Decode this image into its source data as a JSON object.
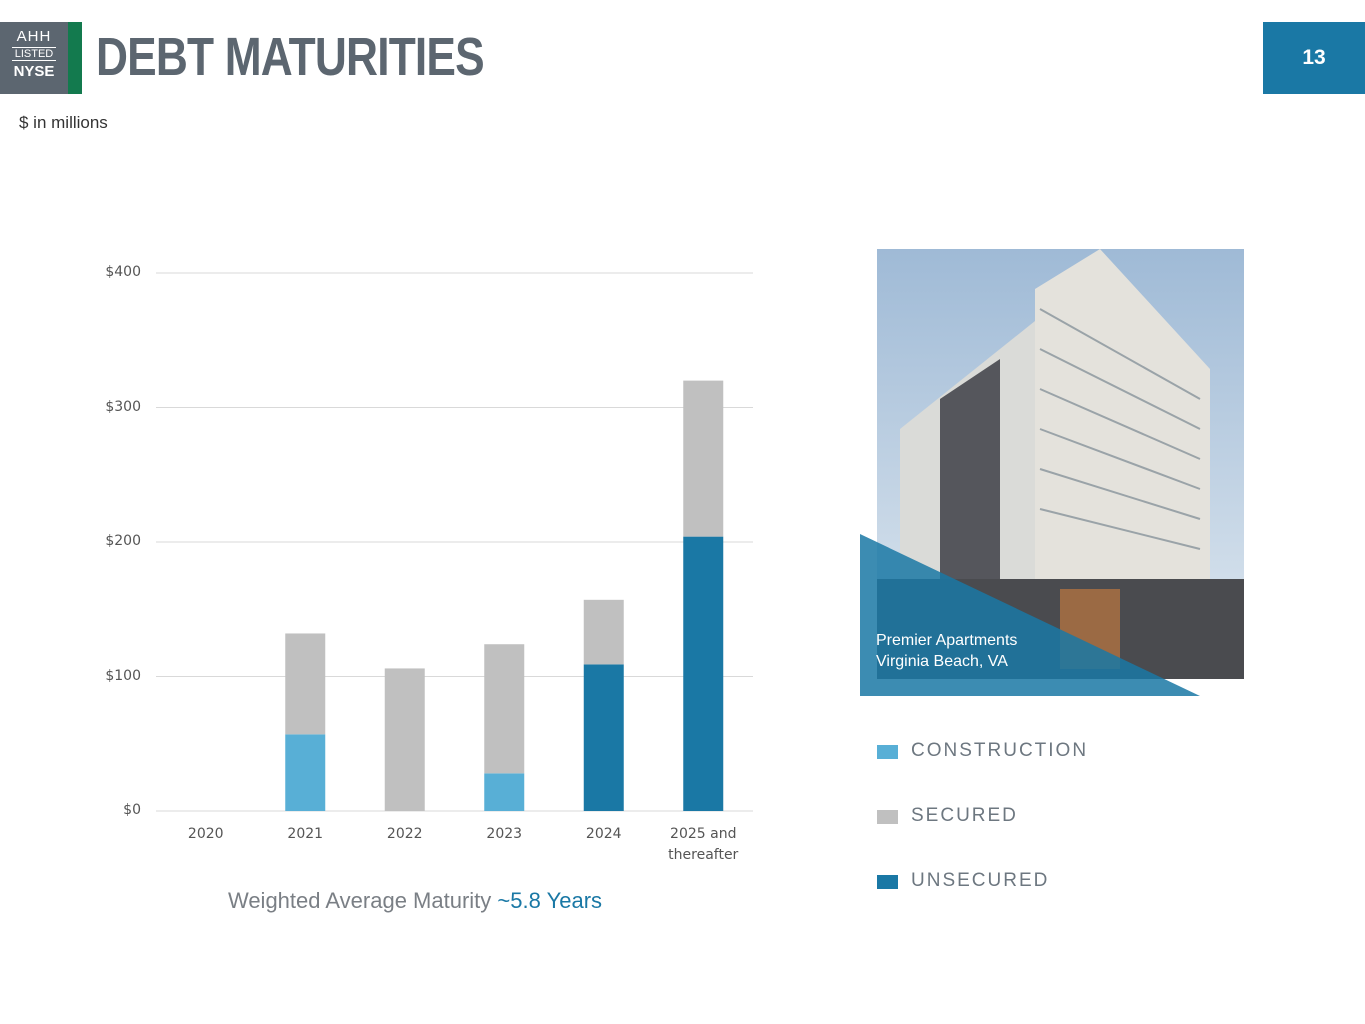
{
  "logo": {
    "top": "AHH",
    "middle": "LISTED",
    "bottom": "NYSE"
  },
  "page_number": "13",
  "photo_caption": {
    "line1": "Premier Apartments",
    "line2": "Virginia Beach, VA"
  },
  "chart_data": {
    "type": "stacked_bar",
    "title": "DEBT MATURITIES",
    "subtitle": "$ in millions",
    "annotation": {
      "text": "Weighted Average Maturity",
      "highlight": "~5.8 Years"
    },
    "categories": [
      "2020",
      "2021",
      "2022",
      "2023",
      "2024",
      "2025 and thereafter"
    ],
    "series": [
      {
        "name": "CONSTRUCTION",
        "color": "#58afd6",
        "values": [
          0,
          57,
          0,
          28,
          0,
          0
        ]
      },
      {
        "name": "SECURED",
        "color": "#c0c0c0",
        "values": [
          0,
          75,
          106,
          96,
          48,
          116
        ]
      },
      {
        "name": "UNSECURED",
        "color": "#1a78a5",
        "values": [
          0,
          0,
          0,
          0,
          109,
          204
        ]
      }
    ],
    "stack_order": [
      0,
      2,
      1
    ],
    "ylim": [
      0,
      400
    ],
    "yticks": [
      {
        "value": 0,
        "label": "$0"
      },
      {
        "value": 100,
        "label": "$100"
      },
      {
        "value": 200,
        "label": "$200"
      },
      {
        "value": 300,
        "label": "$300"
      },
      {
        "value": 400,
        "label": "$400"
      }
    ],
    "grid": true
  }
}
